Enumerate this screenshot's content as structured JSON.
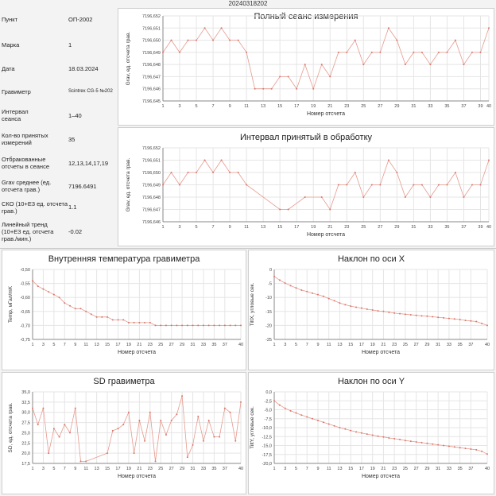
{
  "window": {
    "title": "20240318202"
  },
  "info": [
    {
      "label": "Пункт",
      "value": "ОП-2002"
    },
    {
      "label": "Марка",
      "value": "1"
    },
    {
      "label": "Дата",
      "value": "18.03.2024"
    },
    {
      "label": "Гравиметр",
      "value": "Scintrex CG-5 №202"
    },
    {
      "label": "Интервал сеанса",
      "value": "1–40"
    },
    {
      "label": "Кол-во принятых измерений",
      "value": "35"
    },
    {
      "label": "Отбракованные отсчеты в сеансе",
      "value": "12,13,14,17,19"
    },
    {
      "label": "Grav среднее (ед. отсчета грав.)",
      "value": "7196.6491"
    },
    {
      "label": "СКО (10+E3 ед. отсчета грав.)",
      "value": "1.1"
    },
    {
      "label": "Линейный тренд (10+E3 ед. отсчета грав./мин.)",
      "value": "-0.02"
    }
  ],
  "chart_data": [
    {
      "id": "full",
      "type": "line",
      "title": "Полный сеанс измерения",
      "xlabel": "Номер отсчета",
      "ylabel": "Grav, ед. отсчета грав.",
      "xlim": [
        1,
        40
      ],
      "ylim": [
        7196.645,
        7196.652
      ],
      "xticks": [
        "1",
        "3",
        "5",
        "7",
        "9",
        "11",
        "13",
        "15",
        "17",
        "19",
        "21",
        "23",
        "25",
        "27",
        "29",
        "31",
        "33",
        "35",
        "37",
        "39",
        "40"
      ],
      "yticks": [
        "7196,652",
        "7196,651",
        "7196,650",
        "7196,649",
        "7196,648",
        "7196,647",
        "7196,646",
        "7196,645"
      ],
      "x": [
        1,
        2,
        3,
        4,
        5,
        6,
        7,
        8,
        9,
        10,
        11,
        12,
        13,
        14,
        15,
        16,
        17,
        18,
        19,
        20,
        21,
        22,
        23,
        24,
        25,
        26,
        27,
        28,
        29,
        30,
        31,
        32,
        33,
        34,
        35,
        36,
        37,
        38,
        39,
        40
      ],
      "y": [
        7196.649,
        7196.65,
        7196.649,
        7196.65,
        7196.65,
        7196.651,
        7196.65,
        7196.651,
        7196.65,
        7196.65,
        7196.649,
        7196.646,
        7196.646,
        7196.646,
        7196.647,
        7196.647,
        7196.646,
        7196.648,
        7196.646,
        7196.648,
        7196.647,
        7196.649,
        7196.649,
        7196.65,
        7196.648,
        7196.649,
        7196.649,
        7196.651,
        7196.65,
        7196.648,
        7196.649,
        7196.649,
        7196.648,
        7196.649,
        7196.649,
        7196.65,
        7196.648,
        7196.649,
        7196.649,
        7196.651
      ]
    },
    {
      "id": "accepted",
      "type": "line",
      "title": "Интервал принятый в обработку",
      "xlabel": "Номер отсчета",
      "ylabel": "Grav, ед. отсчета грав.",
      "xlim": [
        1,
        40
      ],
      "ylim": [
        7196.646,
        7196.652
      ],
      "xticks": [
        "1",
        "3",
        "5",
        "7",
        "9",
        "11",
        "13",
        "15",
        "17",
        "19",
        "21",
        "23",
        "25",
        "27",
        "29",
        "31",
        "33",
        "35",
        "37",
        "39",
        "40"
      ],
      "yticks": [
        "7196,652",
        "7196,651",
        "7196,650",
        "7196,649",
        "7196,648",
        "7196,647",
        "7196,646"
      ],
      "x": [
        1,
        2,
        3,
        4,
        5,
        6,
        7,
        8,
        9,
        10,
        11,
        15,
        16,
        18,
        20,
        21,
        22,
        23,
        24,
        25,
        26,
        27,
        28,
        29,
        30,
        31,
        32,
        33,
        34,
        35,
        36,
        37,
        38,
        39,
        40
      ],
      "y": [
        7196.649,
        7196.65,
        7196.649,
        7196.65,
        7196.65,
        7196.651,
        7196.65,
        7196.651,
        7196.65,
        7196.65,
        7196.649,
        7196.647,
        7196.647,
        7196.648,
        7196.648,
        7196.647,
        7196.649,
        7196.649,
        7196.65,
        7196.648,
        7196.649,
        7196.649,
        7196.651,
        7196.65,
        7196.648,
        7196.649,
        7196.649,
        7196.648,
        7196.649,
        7196.649,
        7196.65,
        7196.648,
        7196.649,
        7196.649,
        7196.651
      ]
    },
    {
      "id": "temp",
      "type": "line",
      "title": "Внутренняя температура гравиметра",
      "xlabel": "Номер отсчета",
      "ylabel": "Temp, мГал/mK",
      "xlim": [
        1,
        40
      ],
      "ylim": [
        -0.75,
        -0.5
      ],
      "xticks": [
        "1",
        "3",
        "5",
        "7",
        "9",
        "11",
        "13",
        "15",
        "17",
        "19",
        "21",
        "23",
        "25",
        "27",
        "29",
        "31",
        "33",
        "35",
        "37",
        "40"
      ],
      "yticks": [
        "-0,50",
        "-0,55",
        "-0,60",
        "-0,65",
        "-0,70",
        "-0,75"
      ],
      "x": [
        1,
        2,
        3,
        4,
        5,
        6,
        7,
        8,
        9,
        10,
        11,
        12,
        13,
        14,
        15,
        16,
        17,
        18,
        19,
        20,
        21,
        22,
        23,
        24,
        25,
        26,
        27,
        28,
        29,
        30,
        31,
        32,
        33,
        34,
        35,
        36,
        37,
        38,
        39,
        40
      ],
      "y": [
        -0.54,
        -0.56,
        -0.57,
        -0.58,
        -0.59,
        -0.6,
        -0.62,
        -0.63,
        -0.64,
        -0.64,
        -0.65,
        -0.66,
        -0.67,
        -0.67,
        -0.67,
        -0.68,
        -0.68,
        -0.68,
        -0.69,
        -0.69,
        -0.69,
        -0.69,
        -0.69,
        -0.7,
        -0.7,
        -0.7,
        -0.7,
        -0.7,
        -0.7,
        -0.7,
        -0.7,
        -0.7,
        -0.7,
        -0.7,
        -0.7,
        -0.7,
        -0.7,
        -0.7,
        -0.7,
        -0.7
      ]
    },
    {
      "id": "tiltx",
      "type": "line",
      "title": "Наклон по оси X",
      "xlabel": "Номер отсчета",
      "ylabel": "TiltX, угловые сек.",
      "xlim": [
        1,
        40
      ],
      "ylim": [
        -25,
        0
      ],
      "xticks": [
        "1",
        "3",
        "5",
        "7",
        "9",
        "11",
        "13",
        "15",
        "17",
        "19",
        "21",
        "23",
        "25",
        "27",
        "29",
        "31",
        "33",
        "35",
        "37",
        "40"
      ],
      "yticks": [
        "0",
        "-5",
        "-10",
        "-15",
        "-20",
        "-25"
      ],
      "x": [
        1,
        2,
        3,
        4,
        5,
        6,
        7,
        8,
        9,
        10,
        11,
        12,
        13,
        14,
        15,
        16,
        17,
        18,
        19,
        20,
        21,
        22,
        23,
        24,
        25,
        26,
        27,
        28,
        29,
        30,
        31,
        32,
        33,
        34,
        35,
        36,
        37,
        38,
        39,
        40
      ],
      "y": [
        -2.5,
        -3.8,
        -4.9,
        -5.8,
        -6.6,
        -7.4,
        -7.9,
        -8.5,
        -9.0,
        -9.6,
        -10.4,
        -11.2,
        -12.0,
        -12.6,
        -13.1,
        -13.5,
        -13.8,
        -14.2,
        -14.5,
        -14.8,
        -15.0,
        -15.3,
        -15.6,
        -15.8,
        -16.0,
        -16.2,
        -16.4,
        -16.6,
        -16.7,
        -16.9,
        -17.1,
        -17.3,
        -17.5,
        -17.7,
        -17.9,
        -18.2,
        -18.4,
        -18.6,
        -19.3,
        -20.0
      ]
    },
    {
      "id": "sd",
      "type": "line",
      "title": "SD гравиметра",
      "xlabel": "Номер отсчета",
      "ylabel": "SD, ед. отсчета грав.",
      "xlim": [
        1,
        40
      ],
      "ylim": [
        17.5,
        35
      ],
      "xticks": [
        "1",
        "3",
        "5",
        "7",
        "9",
        "11",
        "13",
        "15",
        "17",
        "19",
        "21",
        "23",
        "25",
        "27",
        "29",
        "31",
        "33",
        "35",
        "37",
        "40"
      ],
      "yticks": [
        "35,0",
        "32,5",
        "30,0",
        "27,5",
        "25,0",
        "22,5",
        "20,0",
        "17,5"
      ],
      "x": [
        1,
        2,
        3,
        4,
        5,
        6,
        7,
        8,
        9,
        10,
        11,
        15,
        16,
        17,
        18,
        19,
        20,
        21,
        22,
        23,
        24,
        25,
        26,
        27,
        28,
        29,
        30,
        31,
        32,
        33,
        34,
        35,
        36,
        37,
        38,
        39,
        40
      ],
      "y": [
        31,
        27,
        31,
        20,
        26,
        24,
        27,
        25,
        31,
        18,
        18,
        20,
        25.5,
        26,
        27,
        30,
        20,
        28,
        23,
        30,
        18,
        28,
        24.5,
        28,
        29.5,
        34,
        19,
        22,
        29,
        23,
        28,
        24,
        24,
        31,
        30,
        23,
        32.5
      ]
    },
    {
      "id": "tilty",
      "type": "line",
      "title": "Наклон по оси Y",
      "xlabel": "Номер отсчета",
      "ylabel": "TiltY, угловые сек.",
      "xlim": [
        1,
        40
      ],
      "ylim": [
        -20,
        0
      ],
      "xticks": [
        "1",
        "3",
        "5",
        "7",
        "9",
        "11",
        "13",
        "15",
        "17",
        "19",
        "21",
        "23",
        "25",
        "27",
        "29",
        "31",
        "33",
        "35",
        "37",
        "40"
      ],
      "yticks": [
        "0,0",
        "-2,5",
        "-5,0",
        "-7,5",
        "-10,0",
        "-12,5",
        "-15,0",
        "-17,5",
        "-20,0"
      ],
      "x": [
        1,
        2,
        3,
        4,
        5,
        6,
        7,
        8,
        9,
        10,
        11,
        12,
        13,
        14,
        15,
        16,
        17,
        18,
        19,
        20,
        21,
        22,
        23,
        24,
        25,
        26,
        27,
        28,
        29,
        30,
        31,
        32,
        33,
        34,
        35,
        36,
        37,
        38,
        39,
        40
      ],
      "y": [
        -2.5,
        -3.7,
        -4.6,
        -5.3,
        -5.9,
        -6.5,
        -7.0,
        -7.5,
        -8.0,
        -8.5,
        -9.0,
        -9.5,
        -10.0,
        -10.4,
        -10.8,
        -11.2,
        -11.5,
        -11.8,
        -12.1,
        -12.4,
        -12.6,
        -12.9,
        -13.1,
        -13.3,
        -13.6,
        -13.8,
        -14.0,
        -14.2,
        -14.4,
        -14.6,
        -14.8,
        -15.0,
        -15.2,
        -15.4,
        -15.6,
        -15.8,
        -16.0,
        -16.2,
        -16.6,
        -17.4
      ]
    }
  ],
  "colors": {
    "line": "#e79a8f",
    "grid": "#e5e5e5",
    "axis": "#888888"
  }
}
